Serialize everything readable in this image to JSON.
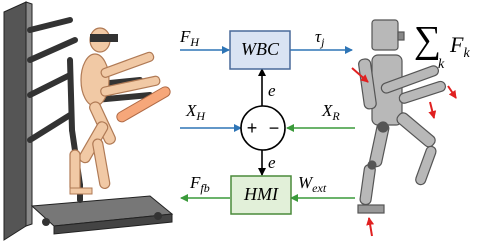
{
  "blocks": {
    "wbc": "WBC",
    "hmi": "HMI"
  },
  "signals": [
    {
      "symbol": "F",
      "subscript": "H"
    },
    {
      "symbol": "τ",
      "subscript": "j"
    },
    {
      "symbol": "X",
      "subscript": "H"
    },
    {
      "symbol": "X",
      "subscript": "R"
    },
    {
      "symbol": "e"
    },
    {
      "symbol": "e"
    },
    {
      "symbol": "F",
      "subscript": "fb"
    },
    {
      "symbol": "W",
      "subscript": "ext"
    }
  ],
  "summing_junction": {
    "plus": "+",
    "minus": "−"
  },
  "sum_force": {
    "operator": "∑",
    "index": "k",
    "symbol": "F",
    "subscript": "k"
  }
}
